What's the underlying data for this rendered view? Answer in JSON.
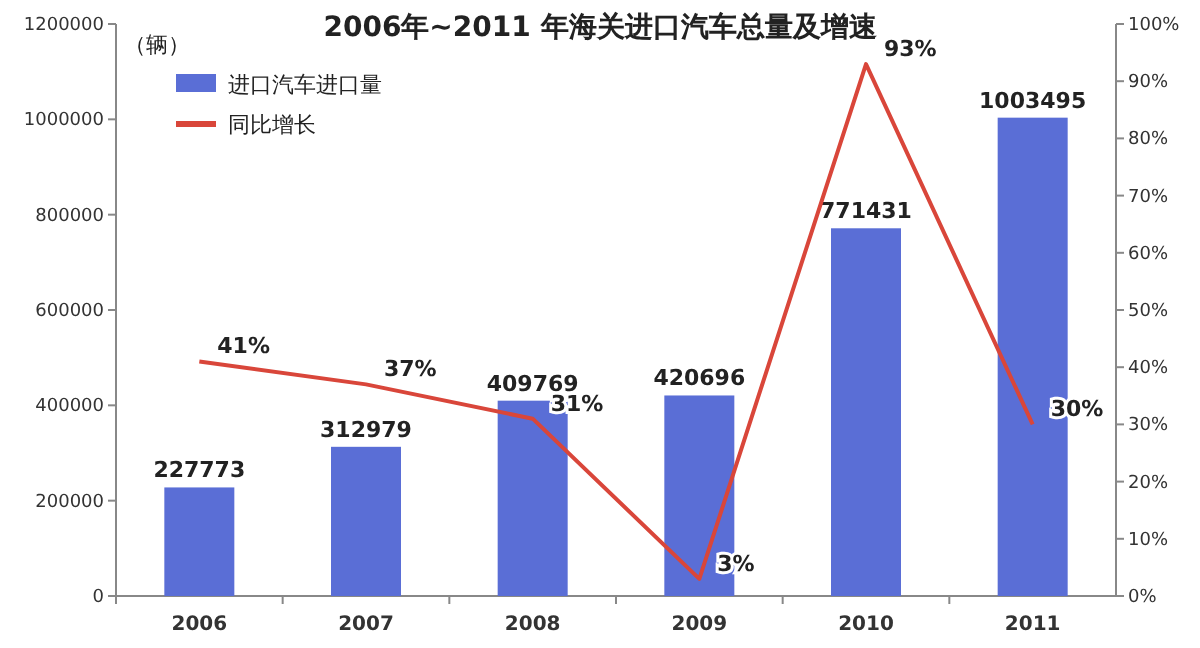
{
  "chart_data": {
    "type": "bar",
    "title": "2006年~2011 年海关进口汽车总量及增速",
    "ylabel": "（辆）",
    "categories": [
      "2006",
      "2007",
      "2008",
      "2009",
      "2010",
      "2011"
    ],
    "series": [
      {
        "name": "进口汽车进口量",
        "color": "#5a6ed6",
        "values": [
          227773,
          312979,
          409769,
          420696,
          771431,
          1003495
        ]
      },
      {
        "name": "同比增长",
        "type": "line",
        "axis": "y2",
        "color": "#d9463a",
        "values": [
          41,
          37,
          31,
          3,
          93,
          30
        ],
        "value_labels": [
          "41%",
          "37%",
          "31%",
          "3%",
          "93%",
          "30%"
        ]
      }
    ],
    "ylim": [
      0,
      1200000
    ],
    "yticks": [
      0,
      200000,
      400000,
      600000,
      800000,
      1000000,
      1200000
    ],
    "y2lim": [
      0,
      100
    ],
    "y2ticks": [
      {
        "value": 0,
        "label": "0%"
      },
      {
        "value": 10,
        "label": "10%"
      },
      {
        "value": 20,
        "label": "20%"
      },
      {
        "value": 30,
        "label": "30%"
      },
      {
        "value": 40,
        "label": "40%"
      },
      {
        "value": 50,
        "label": "50%"
      },
      {
        "value": 60,
        "label": "60%"
      },
      {
        "value": 70,
        "label": "70%"
      },
      {
        "value": 80,
        "label": "80%"
      },
      {
        "value": 90,
        "label": "90%"
      },
      {
        "value": 100,
        "label": "100%"
      }
    ],
    "data_labels": true,
    "legend": "top left"
  }
}
